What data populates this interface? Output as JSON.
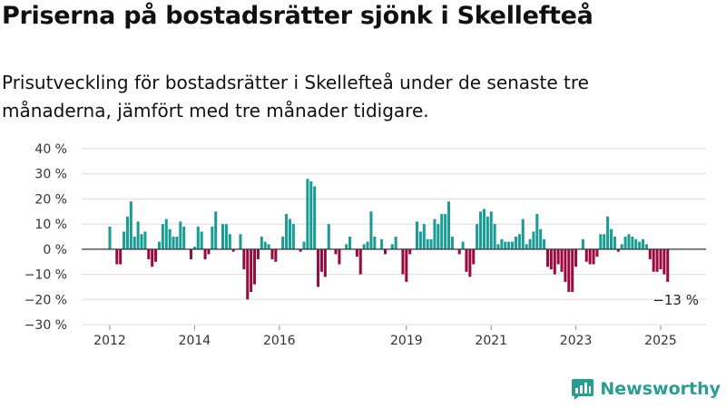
{
  "title": "Priserna på bostadsrätter sjönk i Skellefteå",
  "subtitle": "Prisutveckling för bostadsrätter i Skellefteå under de senaste tre månaderna, jämfört med tre månader tidigare.",
  "brand": {
    "name": "Newsworthy",
    "icon": "newsworthy-logo-icon"
  },
  "colors": {
    "positive": "#1a9c94",
    "negative": "#9b0a3e",
    "grid": "#dddddd",
    "zero_line": "#333333"
  },
  "chart_data": {
    "type": "bar",
    "title": "",
    "xlabel": "",
    "ylabel": "",
    "ylim": [
      -30,
      40
    ],
    "y_ticks": [
      "40 %",
      "30 %",
      "20 %",
      "10 %",
      "0 %",
      "−10 %",
      "−20 %",
      "−30 %"
    ],
    "y_tick_values": [
      40,
      30,
      20,
      10,
      0,
      -10,
      -20,
      -30
    ],
    "x_ticks": [
      "2012",
      "2014",
      "2016",
      "2019",
      "2021",
      "2023",
      "2025"
    ],
    "x_tick_values": [
      2012,
      2014,
      2016,
      2019,
      2021,
      2023,
      2025
    ],
    "x_start": 2012.0,
    "x_step": 0.08333,
    "end_label": "−13 %",
    "grid": true,
    "values": [
      9,
      0,
      -6,
      -6,
      7,
      13,
      19,
      5,
      11,
      6,
      7,
      -4,
      -7,
      -5,
      3,
      10,
      12,
      8,
      5,
      5,
      11,
      9,
      0,
      -4,
      1,
      9,
      7,
      -4,
      -2,
      9,
      15,
      0,
      10,
      10,
      6,
      -1,
      0,
      6,
      -8,
      -20,
      -17,
      -14,
      -4,
      5,
      3,
      2,
      -4,
      -5,
      0,
      5,
      14,
      12,
      10,
      0,
      -1,
      3,
      28,
      27,
      25,
      -15,
      -9,
      -11,
      10,
      0,
      -2,
      -6,
      0,
      2,
      5,
      0,
      -3,
      -10,
      2,
      3,
      15,
      5,
      0,
      4,
      -2,
      0,
      2,
      5,
      0,
      -10,
      -13,
      -2,
      0,
      11,
      7,
      10,
      4,
      4,
      12,
      10,
      14,
      14,
      19,
      5,
      0,
      -2,
      3,
      -9,
      -11,
      -6,
      10,
      15,
      16,
      13,
      15,
      10,
      2,
      4,
      3,
      3,
      3,
      5,
      6,
      12,
      2,
      4,
      7,
      14,
      8,
      4,
      -7,
      -8,
      -10,
      -6,
      -9,
      -13,
      -17,
      -17,
      -7,
      0,
      4,
      -5,
      -6,
      -6,
      -3,
      6,
      6,
      13,
      8,
      5,
      -1,
      2,
      5,
      6,
      5,
      4,
      3,
      4,
      2,
      -4,
      -9,
      -9,
      -8,
      -10,
      -13
    ]
  }
}
